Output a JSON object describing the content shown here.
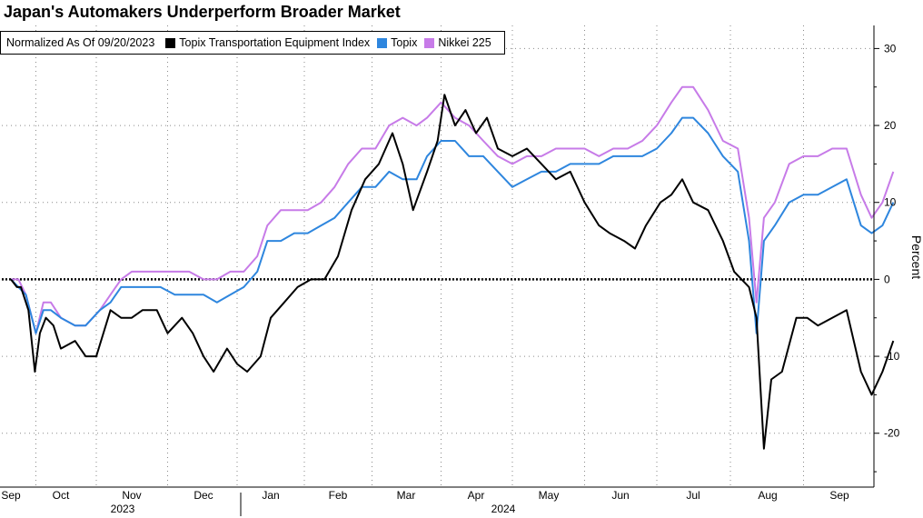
{
  "chart_data": {
    "type": "line",
    "title": "Japan's Automakers Underperform Broader Market",
    "legend_note": "Normalized As Of 09/20/2023",
    "ylabel": "Percent",
    "ylim": [
      -27,
      33
    ],
    "yticks": [
      30,
      20,
      10,
      0,
      -10,
      -20
    ],
    "grid": true,
    "legend_position": "top-left",
    "month_labels": [
      "Sep",
      "Oct",
      "Nov",
      "Dec",
      "Jan",
      "Feb",
      "Mar",
      "Apr",
      "May",
      "Jun",
      "Jul",
      "Aug",
      "Sep"
    ],
    "year_labels": [
      {
        "label": "2023",
        "month_index": 2
      },
      {
        "label": "2024",
        "month_index": 7.5
      }
    ],
    "series": [
      {
        "name": "Topix Transportation Equipment Index",
        "color": "#000000",
        "points": [
          [
            0,
            0
          ],
          [
            0.12,
            -1
          ],
          [
            0.2,
            -1
          ],
          [
            0.35,
            -4
          ],
          [
            0.48,
            -12
          ],
          [
            0.58,
            -7
          ],
          [
            0.7,
            -5
          ],
          [
            0.85,
            -6
          ],
          [
            1,
            -9
          ],
          [
            1.2,
            -8
          ],
          [
            1.35,
            -10
          ],
          [
            1.5,
            -10
          ],
          [
            1.7,
            -4
          ],
          [
            1.85,
            -5
          ],
          [
            2,
            -5
          ],
          [
            2.15,
            -4
          ],
          [
            2.35,
            -4
          ],
          [
            2.5,
            -7
          ],
          [
            2.7,
            -5
          ],
          [
            2.85,
            -7
          ],
          [
            3,
            -10
          ],
          [
            3.15,
            -12
          ],
          [
            3.35,
            -9
          ],
          [
            3.5,
            -11
          ],
          [
            3.65,
            -12
          ],
          [
            3.85,
            -10
          ],
          [
            4,
            -5
          ],
          [
            4.2,
            -3
          ],
          [
            4.4,
            -1
          ],
          [
            4.6,
            0
          ],
          [
            4.8,
            0
          ],
          [
            5.0,
            3
          ],
          [
            5.2,
            9
          ],
          [
            5.4,
            13
          ],
          [
            5.6,
            15
          ],
          [
            5.8,
            19
          ],
          [
            5.95,
            15
          ],
          [
            6.1,
            9
          ],
          [
            6.3,
            14
          ],
          [
            6.45,
            18
          ],
          [
            6.55,
            24
          ],
          [
            6.7,
            20
          ],
          [
            6.85,
            22
          ],
          [
            7.0,
            19
          ],
          [
            7.15,
            21
          ],
          [
            7.3,
            17
          ],
          [
            7.5,
            16
          ],
          [
            7.7,
            17
          ],
          [
            7.9,
            15
          ],
          [
            8.1,
            13
          ],
          [
            8.3,
            14
          ],
          [
            8.5,
            10
          ],
          [
            8.7,
            7
          ],
          [
            8.85,
            6
          ],
          [
            9.05,
            5
          ],
          [
            9.2,
            4
          ],
          [
            9.35,
            7
          ],
          [
            9.55,
            10
          ],
          [
            9.7,
            11
          ],
          [
            9.85,
            13
          ],
          [
            10.0,
            10
          ],
          [
            10.2,
            9
          ],
          [
            10.4,
            5
          ],
          [
            10.55,
            1
          ],
          [
            10.75,
            -1
          ],
          [
            10.85,
            -5
          ],
          [
            10.95,
            -22
          ],
          [
            11.05,
            -13
          ],
          [
            11.2,
            -12
          ],
          [
            11.4,
            -5
          ],
          [
            11.55,
            -5
          ],
          [
            11.7,
            -6
          ],
          [
            11.9,
            -5
          ],
          [
            12.1,
            -4
          ],
          [
            12.3,
            -12
          ],
          [
            12.45,
            -15
          ],
          [
            12.6,
            -12
          ],
          [
            12.75,
            -8
          ]
        ]
      },
      {
        "name": "Topix",
        "color": "#2e86de",
        "points": [
          [
            0,
            0
          ],
          [
            0.15,
            -1
          ],
          [
            0.3,
            -2
          ],
          [
            0.5,
            -7
          ],
          [
            0.65,
            -4
          ],
          [
            0.8,
            -4
          ],
          [
            1,
            -5
          ],
          [
            1.2,
            -6
          ],
          [
            1.35,
            -6
          ],
          [
            1.55,
            -4
          ],
          [
            1.7,
            -3
          ],
          [
            1.85,
            -1
          ],
          [
            2,
            -1
          ],
          [
            2.2,
            -1
          ],
          [
            2.4,
            -1
          ],
          [
            2.6,
            -2
          ],
          [
            2.8,
            -2
          ],
          [
            3.0,
            -2
          ],
          [
            3.2,
            -3
          ],
          [
            3.4,
            -2
          ],
          [
            3.6,
            -1
          ],
          [
            3.8,
            1
          ],
          [
            3.95,
            5
          ],
          [
            4.15,
            5
          ],
          [
            4.35,
            6
          ],
          [
            4.55,
            6
          ],
          [
            4.75,
            7
          ],
          [
            4.95,
            8
          ],
          [
            5.15,
            10
          ],
          [
            5.35,
            12
          ],
          [
            5.55,
            12
          ],
          [
            5.75,
            14
          ],
          [
            5.95,
            13
          ],
          [
            6.15,
            13
          ],
          [
            6.3,
            16
          ],
          [
            6.5,
            18
          ],
          [
            6.7,
            18
          ],
          [
            6.9,
            16
          ],
          [
            7.1,
            16
          ],
          [
            7.3,
            14
          ],
          [
            7.5,
            12
          ],
          [
            7.7,
            13
          ],
          [
            7.9,
            14
          ],
          [
            8.1,
            14
          ],
          [
            8.3,
            15
          ],
          [
            8.5,
            15
          ],
          [
            8.7,
            15
          ],
          [
            8.9,
            16
          ],
          [
            9.1,
            16
          ],
          [
            9.3,
            16
          ],
          [
            9.5,
            17
          ],
          [
            9.7,
            19
          ],
          [
            9.85,
            21
          ],
          [
            10.0,
            21
          ],
          [
            10.2,
            19
          ],
          [
            10.4,
            16
          ],
          [
            10.6,
            14
          ],
          [
            10.75,
            5
          ],
          [
            10.85,
            -7
          ],
          [
            10.95,
            5
          ],
          [
            11.1,
            7
          ],
          [
            11.3,
            10
          ],
          [
            11.5,
            11
          ],
          [
            11.7,
            11
          ],
          [
            11.9,
            12
          ],
          [
            12.1,
            13
          ],
          [
            12.3,
            7
          ],
          [
            12.45,
            6
          ],
          [
            12.6,
            7
          ],
          [
            12.75,
            10
          ]
        ]
      },
      {
        "name": "Nikkei 225",
        "color": "#c77be8",
        "points": [
          [
            0,
            0
          ],
          [
            0.15,
            0
          ],
          [
            0.3,
            -2
          ],
          [
            0.5,
            -7
          ],
          [
            0.65,
            -3
          ],
          [
            0.8,
            -3
          ],
          [
            1,
            -5
          ],
          [
            1.2,
            -6
          ],
          [
            1.35,
            -6
          ],
          [
            1.55,
            -4
          ],
          [
            1.7,
            -2
          ],
          [
            1.85,
            0
          ],
          [
            2,
            1
          ],
          [
            2.2,
            1
          ],
          [
            2.4,
            1
          ],
          [
            2.6,
            1
          ],
          [
            2.8,
            1
          ],
          [
            3.0,
            0
          ],
          [
            3.2,
            0
          ],
          [
            3.4,
            1
          ],
          [
            3.6,
            1
          ],
          [
            3.8,
            3
          ],
          [
            3.95,
            7
          ],
          [
            4.15,
            9
          ],
          [
            4.35,
            9
          ],
          [
            4.55,
            9
          ],
          [
            4.75,
            10
          ],
          [
            4.95,
            12
          ],
          [
            5.15,
            15
          ],
          [
            5.35,
            17
          ],
          [
            5.55,
            17
          ],
          [
            5.75,
            20
          ],
          [
            5.95,
            21
          ],
          [
            6.15,
            20
          ],
          [
            6.3,
            21
          ],
          [
            6.5,
            23
          ],
          [
            6.7,
            21
          ],
          [
            6.9,
            20
          ],
          [
            7.1,
            18
          ],
          [
            7.3,
            16
          ],
          [
            7.5,
            15
          ],
          [
            7.7,
            16
          ],
          [
            7.9,
            16
          ],
          [
            8.1,
            17
          ],
          [
            8.3,
            17
          ],
          [
            8.5,
            17
          ],
          [
            8.7,
            16
          ],
          [
            8.9,
            17
          ],
          [
            9.1,
            17
          ],
          [
            9.3,
            18
          ],
          [
            9.5,
            20
          ],
          [
            9.7,
            23
          ],
          [
            9.85,
            25
          ],
          [
            10.0,
            25
          ],
          [
            10.2,
            22
          ],
          [
            10.4,
            18
          ],
          [
            10.6,
            17
          ],
          [
            10.75,
            8
          ],
          [
            10.85,
            -3
          ],
          [
            10.95,
            8
          ],
          [
            11.1,
            10
          ],
          [
            11.3,
            15
          ],
          [
            11.5,
            16
          ],
          [
            11.7,
            16
          ],
          [
            11.9,
            17
          ],
          [
            12.1,
            17
          ],
          [
            12.3,
            11
          ],
          [
            12.45,
            8
          ],
          [
            12.6,
            10
          ],
          [
            12.75,
            14
          ]
        ]
      }
    ]
  }
}
